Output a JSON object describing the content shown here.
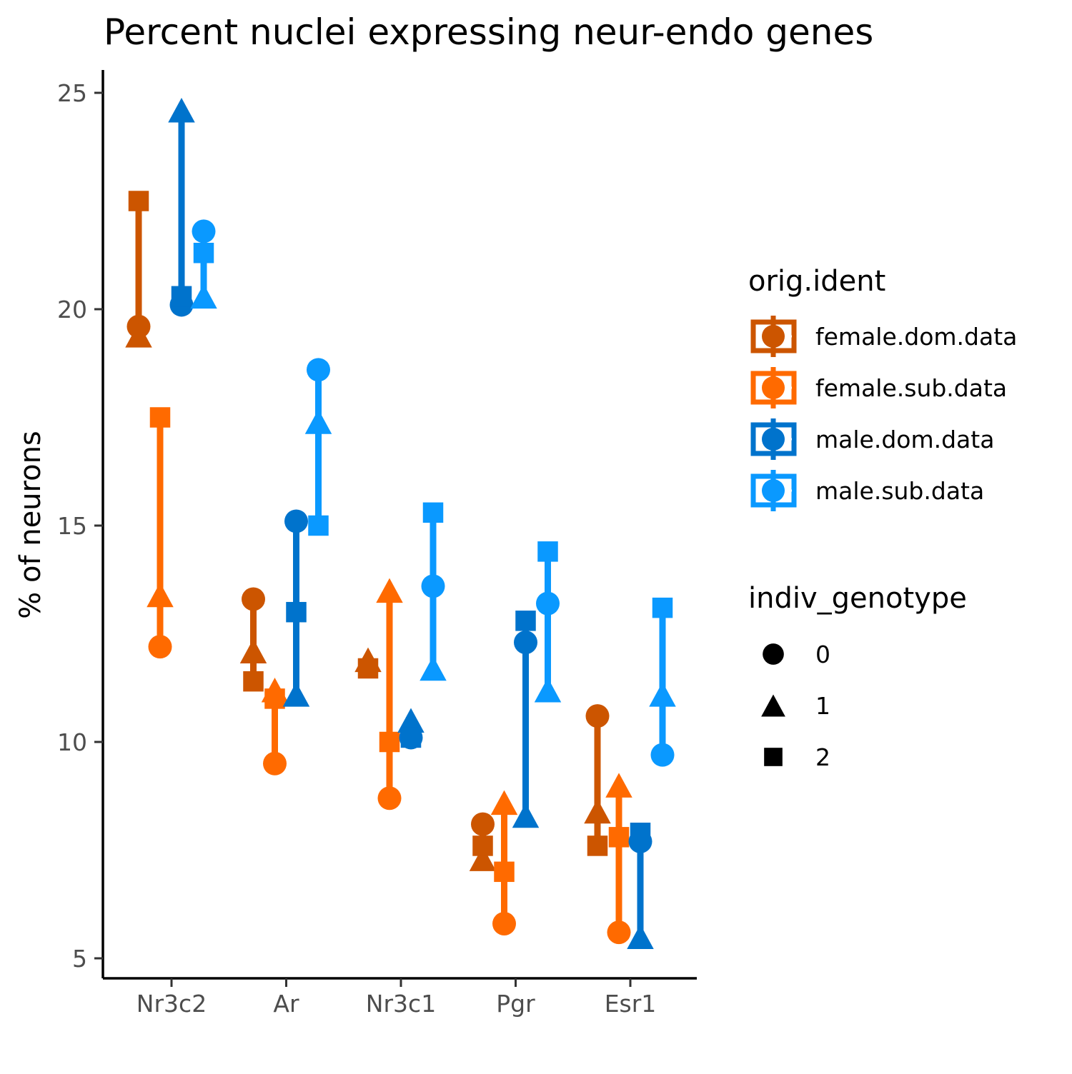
{
  "chart_data": {
    "type": "scatter",
    "title": "Percent nuclei expressing neur-endo genes",
    "xlabel": "",
    "ylabel": "% of neurons",
    "categories": [
      "Nr3c2",
      "Ar",
      "Nr3c1",
      "Pgr",
      "Esr1"
    ],
    "ylim": [
      4.5,
      25.5
    ],
    "yticks": [
      5,
      10,
      15,
      20,
      25
    ],
    "grid": false,
    "legend_position": "right",
    "legend_titles": {
      "color": "orig.ident",
      "shape": "indiv_genotype"
    },
    "shape_legend": [
      {
        "label": "0",
        "shape": "circle"
      },
      {
        "label": "1",
        "shape": "triangle"
      },
      {
        "label": "2",
        "shape": "square"
      }
    ],
    "series": [
      {
        "name": "female.dom.data",
        "color": "#CC5500",
        "points": [
          {
            "gene": "Nr3c2",
            "g0": 19.6,
            "g1": 19.4,
            "g2": 22.5
          },
          {
            "gene": "Ar",
            "g0": 13.3,
            "g1": 12.1,
            "g2": 11.4
          },
          {
            "gene": "Nr3c1",
            "g0": null,
            "g1": 11.9,
            "g2": 11.7
          },
          {
            "gene": "Pgr",
            "g0": 8.1,
            "g1": 7.3,
            "g2": 7.6
          },
          {
            "gene": "Esr1",
            "g0": 10.6,
            "g1": 8.4,
            "g2": 7.6
          }
        ]
      },
      {
        "name": "female.sub.data",
        "color": "#FF6A00",
        "points": [
          {
            "gene": "Nr3c2",
            "g0": 12.2,
            "g1": 13.4,
            "g2": 17.5
          },
          {
            "gene": "Ar",
            "g0": 9.5,
            "g1": 11.2,
            "g2": 11.0
          },
          {
            "gene": "Nr3c1",
            "g0": 8.7,
            "g1": 13.5,
            "g2": 10.0
          },
          {
            "gene": "Pgr",
            "g0": 5.8,
            "g1": 8.6,
            "g2": 7.0
          },
          {
            "gene": "Esr1",
            "g0": 5.6,
            "g1": 9.0,
            "g2": 7.8
          }
        ]
      },
      {
        "name": "male.dom.data",
        "color": "#0073CC",
        "points": [
          {
            "gene": "Nr3c2",
            "g0": 20.1,
            "g1": 24.6,
            "g2": 20.3
          },
          {
            "gene": "Ar",
            "g0": 15.1,
            "g1": 11.1,
            "g2": 13.0
          },
          {
            "gene": "Nr3c1",
            "g0": 10.1,
            "g1": 10.5,
            "g2": 10.1
          },
          {
            "gene": "Pgr",
            "g0": 12.3,
            "g1": 8.3,
            "g2": 12.8
          },
          {
            "gene": "Esr1",
            "g0": 7.7,
            "g1": 5.5,
            "g2": 7.9
          }
        ]
      },
      {
        "name": "male.sub.data",
        "color": "#0A99FF",
        "points": [
          {
            "gene": "Nr3c2",
            "g0": 21.8,
            "g1": 20.3,
            "g2": 21.3
          },
          {
            "gene": "Ar",
            "g0": 18.6,
            "g1": 17.4,
            "g2": 15.0
          },
          {
            "gene": "Nr3c1",
            "g0": 13.6,
            "g1": 11.7,
            "g2": 15.3
          },
          {
            "gene": "Pgr",
            "g0": 13.2,
            "g1": 11.2,
            "g2": 14.4
          },
          {
            "gene": "Esr1",
            "g0": 9.7,
            "g1": 11.1,
            "g2": 13.1
          }
        ]
      }
    ]
  }
}
